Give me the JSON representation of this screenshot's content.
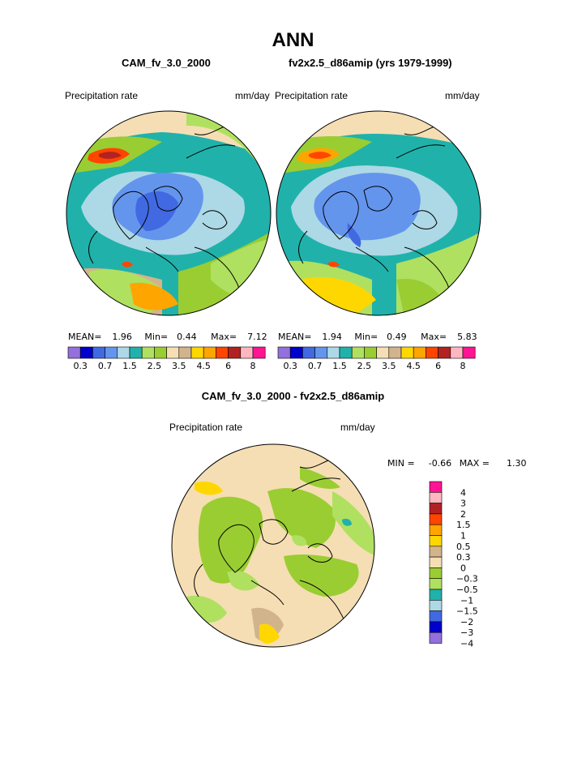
{
  "title": "ANN",
  "panels": [
    {
      "case_name": "CAM_fv_3.0_2000",
      "field": "Precipitation rate",
      "units": "mm/day",
      "stats": {
        "mean_label": "MEAN=",
        "mean": "1.96",
        "min_label": "Min=",
        "min": "0.44",
        "max_label": "Max=",
        "max": "7.12"
      }
    },
    {
      "case_name": "fv2x2.5_d86amip (yrs 1979-1999)",
      "field": "Precipitation rate",
      "units": "mm/day",
      "stats": {
        "mean_label": "MEAN=",
        "mean": "1.94",
        "min_label": "Min=",
        "min": "0.49",
        "max_label": "Max=",
        "max": "5.83"
      }
    }
  ],
  "abs_colorbar": {
    "colors": [
      "#9370db",
      "#0000cd",
      "#4169e1",
      "#6495ed",
      "#add8e6",
      "#20b2aa",
      "#b0e060",
      "#9acd32",
      "#f5deb3",
      "#d2b48c",
      "#ffd700",
      "#ffa500",
      "#ff4500",
      "#b22222",
      "#ffb6c1",
      "#ff1493"
    ],
    "tick_labels": [
      "0.3",
      "0.7",
      "1.5",
      "2.5",
      "3.5",
      "4.5",
      "6",
      "8"
    ]
  },
  "diff_panel": {
    "title": "CAM_fv_3.0_2000 - fv2x2.5_d86amip",
    "field": "Precipitation rate",
    "units": "mm/day",
    "min_label": "MIN =",
    "min": "-0.66",
    "max_label": "MAX =",
    "max": "1.30"
  },
  "diff_colorbar": {
    "colors": [
      "#ff1493",
      "#ffb6c1",
      "#b22222",
      "#ff4500",
      "#ffa500",
      "#ffd700",
      "#d2b48c",
      "#f5deb3",
      "#9acd32",
      "#b0e060",
      "#20b2aa",
      "#add8e6",
      "#4169e1",
      "#0000cd",
      "#9370db"
    ],
    "tick_labels": [
      "4",
      "3",
      "2",
      "1.5",
      "1",
      "0.5",
      "0.3",
      "0",
      "−0.3",
      "−0.5",
      "−1",
      "−1.5",
      "−2",
      "−3",
      "−4"
    ]
  }
}
